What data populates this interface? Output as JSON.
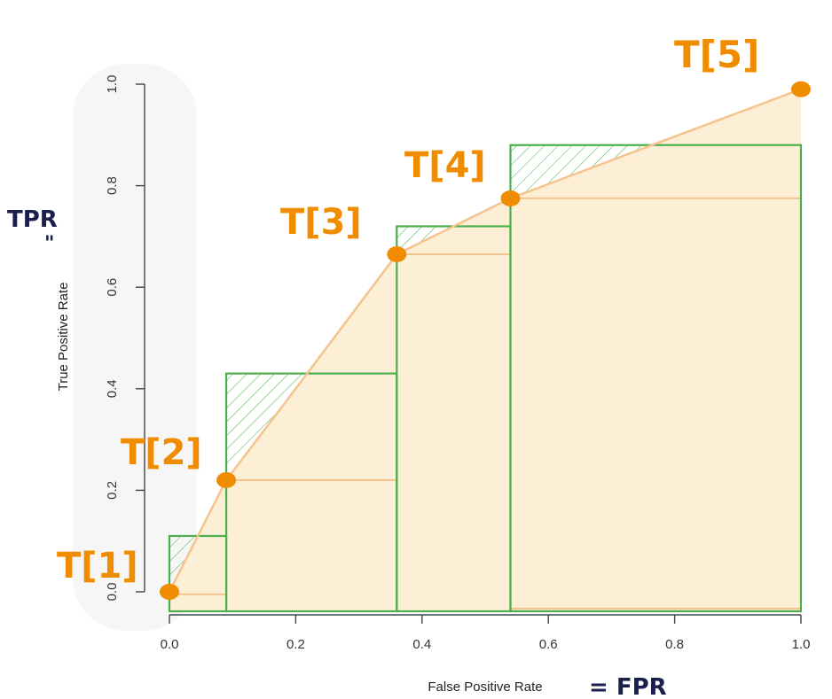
{
  "chart_data": {
    "type": "line",
    "xlabel": "False Positive Rate",
    "ylabel": "True Positive Rate",
    "xlim": [
      0,
      1
    ],
    "ylim": [
      0,
      1
    ],
    "xticks": [
      "0.0",
      "0.2",
      "0.4",
      "0.6",
      "0.8",
      "1.0"
    ],
    "yticks": [
      "0.0",
      "0.2",
      "0.4",
      "0.6",
      "0.8",
      "1.0"
    ],
    "curve": {
      "x": [
        0.0,
        0.09,
        0.2,
        0.36,
        0.45,
        0.54,
        0.7,
        1.0
      ],
      "y": [
        0.0,
        0.22,
        0.4,
        0.665,
        0.72,
        0.775,
        0.85,
        0.99
      ]
    },
    "points": [
      {
        "label": "T[1]",
        "x": 0.0,
        "y": 0.0
      },
      {
        "label": "T[2]",
        "x": 0.09,
        "y": 0.22
      },
      {
        "label": "T[3]",
        "x": 0.36,
        "y": 0.665
      },
      {
        "label": "T[4]",
        "x": 0.54,
        "y": 0.775
      },
      {
        "label": "T[5]",
        "x": 1.0,
        "y": 0.99
      }
    ],
    "lower_steps": [
      {
        "x0": 0.0,
        "x1": 0.09,
        "y": -0.005
      },
      {
        "x0": 0.09,
        "x1": 0.36,
        "y": 0.22
      },
      {
        "x0": 0.36,
        "x1": 0.54,
        "y": 0.665
      },
      {
        "x0": 0.54,
        "x1": 1.0,
        "y": 0.775
      }
    ],
    "upper_boxes": [
      {
        "x0": 0.0,
        "x1": 0.09,
        "y": 0.11
      },
      {
        "x0": 0.09,
        "x1": 0.36,
        "y": 0.43
      },
      {
        "x0": 0.36,
        "x1": 0.54,
        "y": 0.72
      },
      {
        "x0": 0.54,
        "x1": 1.0,
        "y": 0.88
      }
    ],
    "colors": {
      "curve": "#f5c48e",
      "fill": "#fdeed6",
      "box": "#4cae4c",
      "hatch": "#4cae4c",
      "point": "#f08c00",
      "handwriting": "#1a1f4d"
    }
  },
  "annotations": {
    "point_labels": [
      "T[1]",
      "T[2]",
      "T[3]",
      "T[4]",
      "T[5]"
    ],
    "tpr_note": "TPR",
    "tpr_mark": "\"",
    "fpr_note": "= FPR"
  }
}
